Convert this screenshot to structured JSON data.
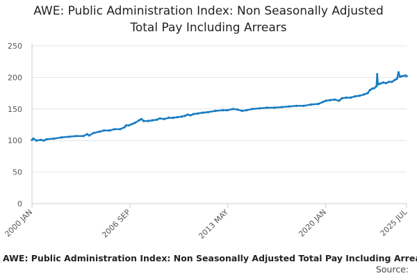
{
  "chart_data": {
    "type": "line",
    "title_lines": [
      "AWE: Public Administration Index: Non Seasonally Adjusted",
      "Total Pay Including Arrears"
    ],
    "xlabel": "",
    "ylabel": "",
    "ylim": [
      0,
      250
    ],
    "yticks": [
      0,
      50,
      100,
      150,
      200,
      250
    ],
    "xlim": [
      2000.0,
      2025.5
    ],
    "xticks": [
      {
        "label": "2000 JAN",
        "value": 2000.0
      },
      {
        "label": "2006 SEP",
        "value": 2006.67
      },
      {
        "label": "2013 MAY",
        "value": 2013.33
      },
      {
        "label": "2020 JAN",
        "value": 2020.0
      },
      {
        "label": "2025 JUL",
        "value": 2025.5
      }
    ],
    "grid": true,
    "series_color": "#1a7dc2",
    "series": [
      {
        "name": "AWE: Public Administration Index: Non Seasonally Adjusted Total Pay Including Arrears",
        "points": [
          [
            2000.0,
            101
          ],
          [
            2000.1,
            103
          ],
          [
            2000.3,
            100
          ],
          [
            2000.6,
            101
          ],
          [
            2000.8,
            100
          ],
          [
            2001.0,
            102
          ],
          [
            2001.5,
            103
          ],
          [
            2002.0,
            105
          ],
          [
            2002.5,
            106
          ],
          [
            2003.0,
            107
          ],
          [
            2003.5,
            107
          ],
          [
            2003.75,
            110
          ],
          [
            2003.9,
            108
          ],
          [
            2004.2,
            112
          ],
          [
            2004.6,
            114
          ],
          [
            2004.9,
            116
          ],
          [
            2005.3,
            116
          ],
          [
            2005.6,
            118
          ],
          [
            2006.0,
            118
          ],
          [
            2006.3,
            121
          ],
          [
            2006.4,
            124
          ],
          [
            2006.6,
            124
          ],
          [
            2006.8,
            126
          ],
          [
            2007.0,
            128
          ],
          [
            2007.3,
            132
          ],
          [
            2007.45,
            134
          ],
          [
            2007.6,
            131
          ],
          [
            2007.9,
            131
          ],
          [
            2008.2,
            132
          ],
          [
            2008.5,
            133
          ],
          [
            2008.7,
            135
          ],
          [
            2009.0,
            134
          ],
          [
            2009.3,
            136
          ],
          [
            2009.6,
            136
          ],
          [
            2009.9,
            137
          ],
          [
            2010.2,
            138
          ],
          [
            2010.4,
            139
          ],
          [
            2010.6,
            141
          ],
          [
            2010.8,
            140
          ],
          [
            2011.0,
            142
          ],
          [
            2011.3,
            143
          ],
          [
            2011.6,
            144
          ],
          [
            2012.0,
            145
          ],
          [
            2012.5,
            147
          ],
          [
            2013.0,
            148
          ],
          [
            2013.3,
            148
          ],
          [
            2013.7,
            150
          ],
          [
            2014.0,
            149
          ],
          [
            2014.3,
            147
          ],
          [
            2014.6,
            148
          ],
          [
            2015.0,
            150
          ],
          [
            2015.5,
            151
          ],
          [
            2016.0,
            152
          ],
          [
            2016.5,
            152
          ],
          [
            2017.0,
            153
          ],
          [
            2017.5,
            154
          ],
          [
            2018.0,
            155
          ],
          [
            2018.5,
            155
          ],
          [
            2019.0,
            157
          ],
          [
            2019.5,
            158
          ],
          [
            2019.8,
            161
          ],
          [
            2020.0,
            163
          ],
          [
            2020.3,
            164
          ],
          [
            2020.6,
            165
          ],
          [
            2020.9,
            163
          ],
          [
            2021.1,
            167
          ],
          [
            2021.4,
            168
          ],
          [
            2021.7,
            168
          ],
          [
            2022.0,
            170
          ],
          [
            2022.3,
            171
          ],
          [
            2022.6,
            173
          ],
          [
            2022.85,
            175
          ],
          [
            2023.0,
            180
          ],
          [
            2023.15,
            182
          ],
          [
            2023.3,
            183
          ],
          [
            2023.45,
            186
          ],
          [
            2023.5,
            205
          ],
          [
            2023.55,
            189
          ],
          [
            2023.7,
            190
          ],
          [
            2023.9,
            192
          ],
          [
            2024.1,
            191
          ],
          [
            2024.3,
            193
          ],
          [
            2024.5,
            193
          ],
          [
            2024.7,
            196
          ],
          [
            2024.85,
            198
          ],
          [
            2024.95,
            208
          ],
          [
            2025.05,
            201
          ],
          [
            2025.2,
            202
          ],
          [
            2025.4,
            203
          ],
          [
            2025.5,
            202
          ]
        ]
      }
    ]
  },
  "legend": {
    "label": "AWE: Public Administration Index: Non Seasonally Adjusted Total Pay Including Arrears"
  },
  "source": {
    "label": "Source:"
  }
}
